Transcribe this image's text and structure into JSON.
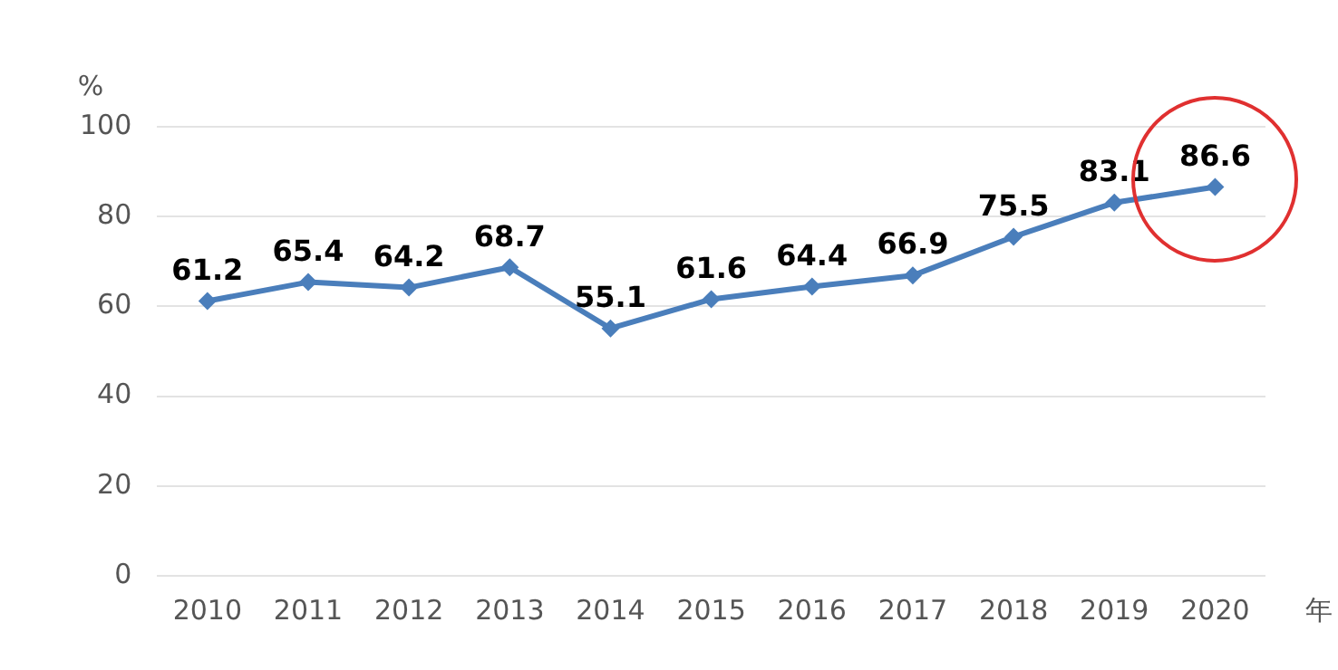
{
  "chart_data": {
    "type": "line",
    "ylabel": "%",
    "xlabel": "年",
    "categories": [
      "2010",
      "2011",
      "2012",
      "2013",
      "2014",
      "2015",
      "2016",
      "2017",
      "2018",
      "2019",
      "2020"
    ],
    "series": [
      {
        "color": "#4a7ebb",
        "values": [
          61.2,
          65.4,
          64.2,
          68.7,
          55.1,
          61.6,
          64.4,
          66.9,
          75.5,
          83.1,
          86.6
        ]
      }
    ],
    "ylim": [
      0,
      100
    ],
    "yticks": [
      0,
      20,
      40,
      60,
      80,
      100
    ],
    "grid": "y",
    "legend": false,
    "marker": "diamond",
    "line_style": "solid",
    "data_labels": true
  }
}
